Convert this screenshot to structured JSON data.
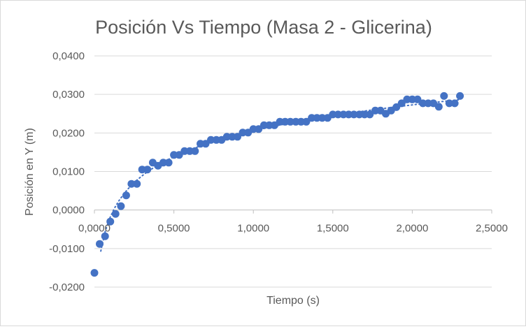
{
  "chart_data": {
    "type": "scatter",
    "title": "Posición Vs Tiempo (Masa 2 - Glicerina)",
    "xlabel": "Tiempo (s)",
    "ylabel": "Posición en Y (m)",
    "xlim": [
      0,
      2.5
    ],
    "ylim": [
      -0.02,
      0.04
    ],
    "x_ticks": [
      0,
      0.5,
      1.0,
      1.5,
      2.0,
      2.5
    ],
    "y_ticks": [
      -0.02,
      -0.01,
      0,
      0.01,
      0.02,
      0.03,
      0.04
    ],
    "x_tick_labels": [
      "0,0000",
      "0,5000",
      "1,0000",
      "1,5000",
      "2,0000",
      "2,5000"
    ],
    "y_tick_labels": [
      "-0,0200",
      "-0,0100",
      "0,0000",
      "0,0100",
      "0,0200",
      "0,0300",
      "0,0400"
    ],
    "grid": "horizontal",
    "legend": "none",
    "trendline": "dotted",
    "colors": {
      "marker": "#4472c4",
      "grid": "#d9d9d9",
      "text": "#595959",
      "axis": "#bfbfbf"
    },
    "points": [
      [
        0.0,
        -0.0163
      ],
      [
        0.033,
        -0.0088
      ],
      [
        0.067,
        -0.0068
      ],
      [
        0.1,
        -0.003
      ],
      [
        0.133,
        -0.001
      ],
      [
        0.167,
        0.001
      ],
      [
        0.2,
        0.0038
      ],
      [
        0.233,
        0.0068
      ],
      [
        0.267,
        0.0068
      ],
      [
        0.3,
        0.0105
      ],
      [
        0.333,
        0.0105
      ],
      [
        0.367,
        0.0123
      ],
      [
        0.4,
        0.0115
      ],
      [
        0.433,
        0.0123
      ],
      [
        0.467,
        0.0123
      ],
      [
        0.5,
        0.0143
      ],
      [
        0.533,
        0.0143
      ],
      [
        0.567,
        0.0153
      ],
      [
        0.6,
        0.0153
      ],
      [
        0.633,
        0.0153
      ],
      [
        0.667,
        0.0172
      ],
      [
        0.7,
        0.0172
      ],
      [
        0.733,
        0.0182
      ],
      [
        0.767,
        0.0182
      ],
      [
        0.8,
        0.0182
      ],
      [
        0.833,
        0.019
      ],
      [
        0.867,
        0.019
      ],
      [
        0.9,
        0.019
      ],
      [
        0.933,
        0.0201
      ],
      [
        0.967,
        0.0201
      ],
      [
        1.0,
        0.021
      ],
      [
        1.033,
        0.021
      ],
      [
        1.067,
        0.022
      ],
      [
        1.1,
        0.022
      ],
      [
        1.133,
        0.022
      ],
      [
        1.167,
        0.0229
      ],
      [
        1.2,
        0.0229
      ],
      [
        1.233,
        0.0229
      ],
      [
        1.267,
        0.0229
      ],
      [
        1.3,
        0.0229
      ],
      [
        1.333,
        0.0229
      ],
      [
        1.367,
        0.0239
      ],
      [
        1.4,
        0.0239
      ],
      [
        1.433,
        0.0239
      ],
      [
        1.467,
        0.0239
      ],
      [
        1.5,
        0.0248
      ],
      [
        1.533,
        0.0248
      ],
      [
        1.567,
        0.0248
      ],
      [
        1.6,
        0.0248
      ],
      [
        1.633,
        0.0248
      ],
      [
        1.667,
        0.0248
      ],
      [
        1.7,
        0.0248
      ],
      [
        1.733,
        0.0248
      ],
      [
        1.767,
        0.0258
      ],
      [
        1.8,
        0.0258
      ],
      [
        1.833,
        0.025
      ],
      [
        1.867,
        0.0258
      ],
      [
        1.9,
        0.0267
      ],
      [
        1.933,
        0.0277
      ],
      [
        1.967,
        0.0287
      ],
      [
        2.0,
        0.0287
      ],
      [
        2.033,
        0.0287
      ],
      [
        2.067,
        0.0277
      ],
      [
        2.1,
        0.0277
      ],
      [
        2.133,
        0.0277
      ],
      [
        2.167,
        0.0268
      ],
      [
        2.2,
        0.0296
      ],
      [
        2.233,
        0.0277
      ],
      [
        2.267,
        0.0277
      ],
      [
        2.3,
        0.0296
      ]
    ]
  }
}
